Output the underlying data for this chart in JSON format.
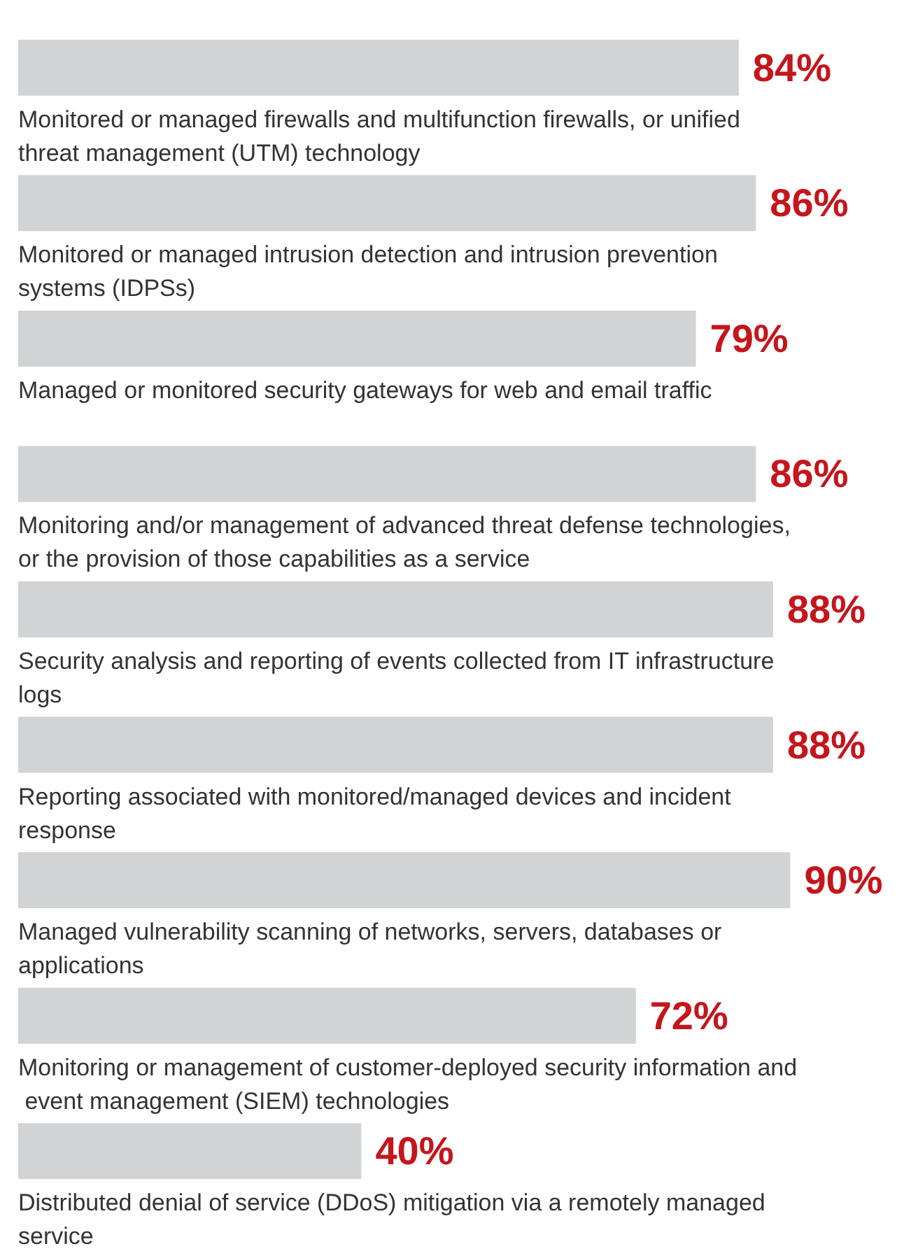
{
  "chart_data": {
    "type": "bar",
    "orientation": "horizontal",
    "categories": [
      "Monitored or managed firewalls and multifunction firewalls, or unified threat management (UTM) technology",
      "Monitored or managed intrusion detection and intrusion prevention systems (IDPSs)",
      "Managed or monitored security gateways for web and email traffic",
      "Monitoring and/or management of advanced threat defense technologies, or the provision of those capabilities as a service",
      "Security analysis and reporting of events collected from IT infrastructure logs",
      "Reporting associated with monitored/managed devices and incident response",
      "Managed vulnerability scanning of networks, servers, databases or applications",
      "Monitoring or management of customer-deployed security information and event management (SIEM) technologies",
      "Distributed denial of service (DDoS) mitigation via a remotely managed service"
    ],
    "values": [
      84,
      86,
      79,
      86,
      88,
      88,
      90,
      72,
      40
    ],
    "value_labels": [
      "84%",
      "86%",
      "79%",
      "86%",
      "88%",
      "88%",
      "90%",
      "72%",
      "40%"
    ],
    "color": "#d1d3d4"
  }
}
